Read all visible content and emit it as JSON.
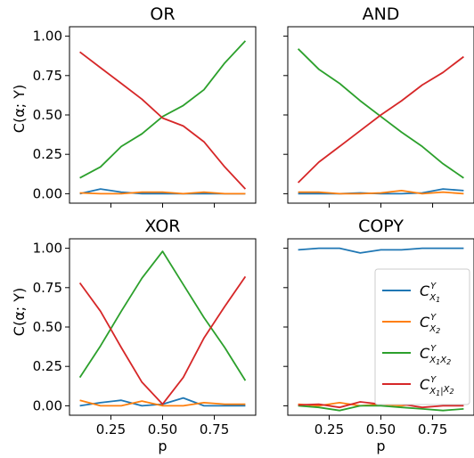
{
  "chart_data": [
    {
      "type": "line",
      "title": "OR",
      "xlabel": "",
      "ylabel": "C(α; Y)",
      "x": [
        0.1,
        0.2,
        0.3,
        0.4,
        0.5,
        0.6,
        0.7,
        0.8,
        0.9
      ],
      "xlim": [
        0.05,
        0.95
      ],
      "ylim": [
        -0.06,
        1.06
      ],
      "xticks": [
        0.25,
        0.5,
        0.75
      ],
      "yticks": [
        0.0,
        0.25,
        0.5,
        0.75,
        1.0
      ],
      "yticklabels": [
        "0.00",
        "0.25",
        "0.50",
        "0.75",
        "1.00"
      ],
      "xticklabels": [],
      "series": [
        {
          "color": "#1f77b4",
          "values": [
            0.0,
            0.03,
            0.01,
            0.0,
            0.0,
            0.0,
            0.0,
            0.0,
            0.0
          ]
        },
        {
          "color": "#ff7f0e",
          "values": [
            0.005,
            0.0,
            0.0,
            0.01,
            0.01,
            0.0,
            0.01,
            0.0,
            0.0
          ]
        },
        {
          "color": "#2ca02c",
          "values": [
            0.1,
            0.17,
            0.3,
            0.38,
            0.49,
            0.56,
            0.66,
            0.83,
            0.97
          ]
        },
        {
          "color": "#d62728",
          "values": [
            0.9,
            0.8,
            0.7,
            0.6,
            0.48,
            0.43,
            0.33,
            0.17,
            0.03
          ]
        }
      ]
    },
    {
      "type": "line",
      "title": "AND",
      "xlabel": "",
      "ylabel": "",
      "x": [
        0.1,
        0.2,
        0.3,
        0.4,
        0.5,
        0.6,
        0.7,
        0.8,
        0.9
      ],
      "xlim": [
        0.05,
        0.95
      ],
      "ylim": [
        -0.06,
        1.06
      ],
      "xticks": [
        0.25,
        0.5,
        0.75
      ],
      "yticks": [
        0.0,
        0.25,
        0.5,
        0.75,
        1.0
      ],
      "yticklabels": [],
      "xticklabels": [],
      "series": [
        {
          "color": "#1f77b4",
          "values": [
            0.0,
            0.0,
            0.0,
            0.005,
            0.0,
            0.0,
            0.005,
            0.03,
            0.02
          ]
        },
        {
          "color": "#ff7f0e",
          "values": [
            0.01,
            0.01,
            0.0,
            0.0,
            0.005,
            0.02,
            0.0,
            0.01,
            0.0
          ]
        },
        {
          "color": "#2ca02c",
          "values": [
            0.92,
            0.79,
            0.7,
            0.59,
            0.49,
            0.39,
            0.3,
            0.19,
            0.1
          ]
        },
        {
          "color": "#d62728",
          "values": [
            0.07,
            0.2,
            0.3,
            0.4,
            0.5,
            0.59,
            0.69,
            0.77,
            0.87
          ]
        }
      ]
    },
    {
      "type": "line",
      "title": "XOR",
      "xlabel": "p",
      "ylabel": "C(α; Y)",
      "x": [
        0.1,
        0.2,
        0.3,
        0.4,
        0.5,
        0.6,
        0.7,
        0.8,
        0.9
      ],
      "xlim": [
        0.05,
        0.95
      ],
      "ylim": [
        -0.06,
        1.06
      ],
      "xticks": [
        0.25,
        0.5,
        0.75
      ],
      "yticks": [
        0.0,
        0.25,
        0.5,
        0.75,
        1.0
      ],
      "yticklabels": [
        "0.00",
        "0.25",
        "0.50",
        "0.75",
        "1.00"
      ],
      "xticklabels": [
        "0.25",
        "0.50",
        "0.75"
      ],
      "series": [
        {
          "color": "#1f77b4",
          "values": [
            0.0,
            0.02,
            0.035,
            0.0,
            0.01,
            0.05,
            0.0,
            0.0,
            0.0
          ]
        },
        {
          "color": "#ff7f0e",
          "values": [
            0.035,
            0.0,
            0.0,
            0.03,
            0.0,
            0.0,
            0.02,
            0.01,
            0.01
          ]
        },
        {
          "color": "#2ca02c",
          "values": [
            0.18,
            0.38,
            0.6,
            0.81,
            0.98,
            0.77,
            0.56,
            0.37,
            0.16
          ]
        },
        {
          "color": "#d62728",
          "values": [
            0.78,
            0.6,
            0.37,
            0.15,
            0.01,
            0.18,
            0.43,
            0.63,
            0.82
          ]
        }
      ]
    },
    {
      "type": "line",
      "title": "COPY",
      "xlabel": "p",
      "ylabel": "",
      "x": [
        0.1,
        0.2,
        0.3,
        0.4,
        0.5,
        0.6,
        0.7,
        0.8,
        0.9
      ],
      "xlim": [
        0.05,
        0.95
      ],
      "ylim": [
        -0.06,
        1.06
      ],
      "xticks": [
        0.25,
        0.5,
        0.75
      ],
      "yticks": [
        0.0,
        0.25,
        0.5,
        0.75,
        1.0
      ],
      "yticklabels": [],
      "xticklabels": [
        "0.25",
        "0.50",
        "0.75"
      ],
      "legend": "center-right",
      "series": [
        {
          "name": "C_{X1}^Y",
          "color": "#1f77b4",
          "values": [
            0.99,
            1.0,
            1.0,
            0.97,
            0.99,
            0.99,
            1.0,
            1.0,
            1.0
          ]
        },
        {
          "name": "C_{X2}^Y",
          "color": "#ff7f0e",
          "values": [
            0.01,
            0.0,
            0.02,
            0.0,
            0.01,
            0.0,
            0.02,
            0.02,
            0.01
          ]
        },
        {
          "name": "C_{X1X2}^Y",
          "color": "#2ca02c",
          "values": [
            0.0,
            -0.01,
            -0.03,
            0.0,
            0.0,
            -0.01,
            -0.02,
            -0.03,
            -0.02
          ]
        },
        {
          "name": "C_{X1|X2}^Y",
          "color": "#d62728",
          "values": [
            0.005,
            0.01,
            -0.01,
            0.025,
            0.01,
            0.01,
            -0.01,
            0.0,
            0.0
          ]
        }
      ]
    }
  ]
}
